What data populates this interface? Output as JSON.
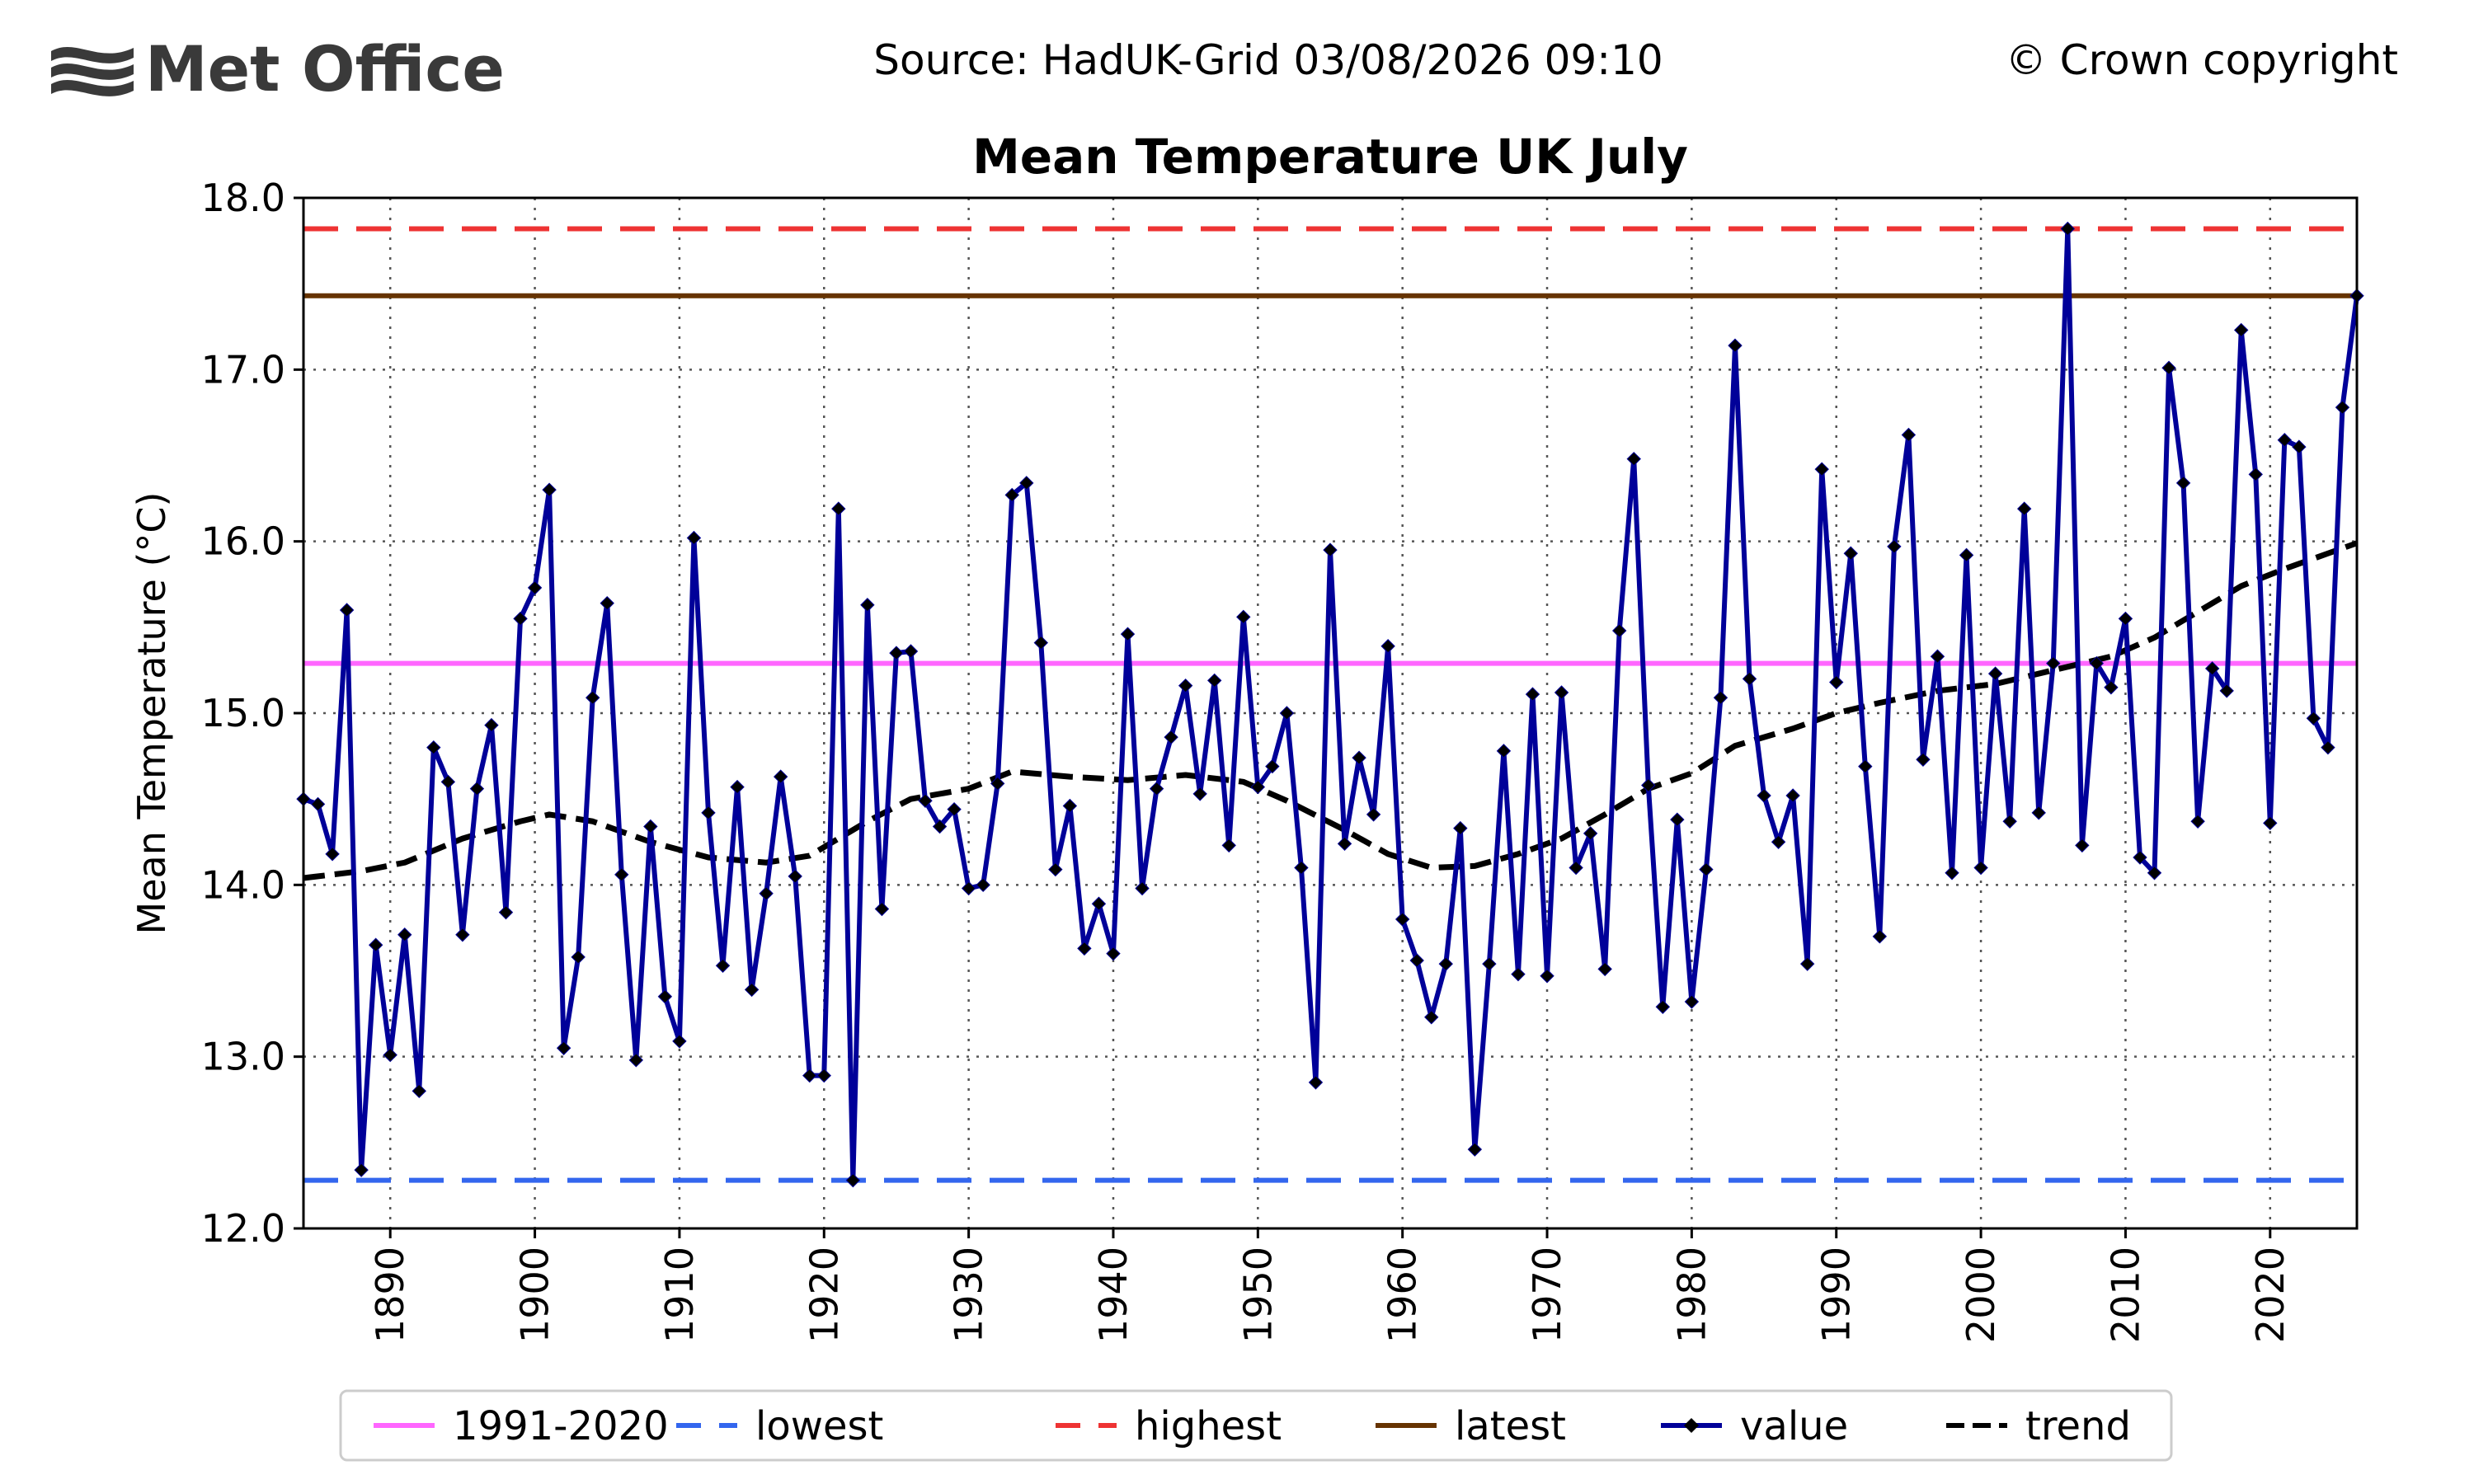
{
  "header": {
    "logo_text": "Met Office",
    "source": "Source: HadUK-Grid 03/08/2026 09:10",
    "copyright": "© Crown copyright"
  },
  "chart_data": {
    "type": "line",
    "title": "Mean Temperature UK July",
    "xlabel": "",
    "ylabel": "Mean Temperature (°C)",
    "xlim": [
      1884,
      2026
    ],
    "ylim": [
      12.0,
      18.0
    ],
    "grid": true,
    "x_ticks": [
      1890,
      1900,
      1910,
      1920,
      1930,
      1940,
      1950,
      1960,
      1970,
      1980,
      1990,
      2000,
      2010,
      2020
    ],
    "y_ticks": [
      "12.0",
      "13.0",
      "14.0",
      "15.0",
      "16.0",
      "17.0",
      "18.0"
    ],
    "legend_position": "bottom",
    "reference_lines": [
      {
        "name": "1991-2020",
        "value": 15.29,
        "color": "#ff66ff",
        "style": "solid"
      },
      {
        "name": "lowest",
        "value": 12.28,
        "color": "#3366ee",
        "style": "dashed"
      },
      {
        "name": "highest",
        "value": 17.82,
        "color": "#ee3333",
        "style": "dashed"
      },
      {
        "name": "latest",
        "value": 17.43,
        "color": "#663300",
        "style": "solid"
      }
    ],
    "series": [
      {
        "name": "value",
        "color": "#000099",
        "x": [
          1884,
          1885,
          1886,
          1887,
          1888,
          1889,
          1890,
          1891,
          1892,
          1893,
          1894,
          1895,
          1896,
          1897,
          1898,
          1899,
          1900,
          1901,
          1902,
          1903,
          1904,
          1905,
          1906,
          1907,
          1908,
          1909,
          1910,
          1911,
          1912,
          1913,
          1914,
          1915,
          1916,
          1917,
          1918,
          1919,
          1920,
          1921,
          1922,
          1923,
          1924,
          1925,
          1926,
          1927,
          1928,
          1929,
          1930,
          1931,
          1932,
          1933,
          1934,
          1935,
          1936,
          1937,
          1938,
          1939,
          1940,
          1941,
          1942,
          1943,
          1944,
          1945,
          1946,
          1947,
          1948,
          1949,
          1950,
          1951,
          1952,
          1953,
          1954,
          1955,
          1956,
          1957,
          1958,
          1959,
          1960,
          1961,
          1962,
          1963,
          1964,
          1965,
          1966,
          1967,
          1968,
          1969,
          1970,
          1971,
          1972,
          1973,
          1974,
          1975,
          1976,
          1977,
          1978,
          1979,
          1980,
          1981,
          1982,
          1983,
          1984,
          1985,
          1986,
          1987,
          1988,
          1989,
          1990,
          1991,
          1992,
          1993,
          1994,
          1995,
          1996,
          1997,
          1998,
          1999,
          2000,
          2001,
          2002,
          2003,
          2004,
          2005,
          2006,
          2007,
          2008,
          2009,
          2010,
          2011,
          2012,
          2013,
          2014,
          2015,
          2016,
          2017,
          2018,
          2019,
          2020,
          2021,
          2022,
          2023,
          2024,
          2025,
          2026
        ],
        "values": [
          14.5,
          14.47,
          14.18,
          15.6,
          12.34,
          13.65,
          13.01,
          13.71,
          12.8,
          14.8,
          14.6,
          13.71,
          14.56,
          14.93,
          13.84,
          15.55,
          15.73,
          16.3,
          13.05,
          13.58,
          15.09,
          15.64,
          14.06,
          12.98,
          14.34,
          13.35,
          13.09,
          16.02,
          14.42,
          13.53,
          14.57,
          13.39,
          13.95,
          14.63,
          14.05,
          12.89,
          12.89,
          16.19,
          12.28,
          15.63,
          13.86,
          15.35,
          15.36,
          14.49,
          14.34,
          14.44,
          13.98,
          14.0,
          14.59,
          16.27,
          16.34,
          15.41,
          14.09,
          14.46,
          13.63,
          13.89,
          13.6,
          15.46,
          13.98,
          14.56,
          14.86,
          15.16,
          14.53,
          15.19,
          14.23,
          15.56,
          14.57,
          14.69,
          15.0,
          14.1,
          12.85,
          15.95,
          14.24,
          14.74,
          14.41,
          15.39,
          13.8,
          13.56,
          13.23,
          13.54,
          14.33,
          12.46,
          13.54,
          14.78,
          13.48,
          15.11,
          13.47,
          15.12,
          14.1,
          14.3,
          13.51,
          15.48,
          16.48,
          14.58,
          13.29,
          14.38,
          13.32,
          14.09,
          15.09,
          17.14,
          15.2,
          14.52,
          14.25,
          14.52,
          13.54,
          16.42,
          15.18,
          15.93,
          14.69,
          13.7,
          15.97,
          16.62,
          14.73,
          15.33,
          14.07,
          15.92,
          14.1,
          15.23,
          14.37,
          16.19,
          14.42,
          15.29,
          17.82,
          14.23,
          15.29,
          15.15,
          15.55,
          14.16,
          14.07,
          17.01,
          16.34,
          14.37,
          15.26,
          15.13,
          17.23,
          16.39,
          14.36,
          16.59,
          16.55,
          14.97,
          14.8,
          16.78,
          17.43
        ]
      },
      {
        "name": "trend",
        "color": "#000000",
        "x": [
          1884,
          1888,
          1891,
          1895,
          1899,
          1901,
          1904,
          1908,
          1912,
          1916,
          1919,
          1923,
          1926,
          1930,
          1933,
          1937,
          1941,
          1945,
          1949,
          1952,
          1956,
          1959,
          1962,
          1965,
          1968,
          1971,
          1974,
          1977,
          1980,
          1983,
          1987,
          1990,
          1993,
          1997,
          2001,
          2005,
          2009,
          2012,
          2015,
          2018,
          2021,
          2024,
          2026
        ],
        "values": [
          14.04,
          14.08,
          14.13,
          14.27,
          14.37,
          14.41,
          14.37,
          14.25,
          14.16,
          14.13,
          14.17,
          14.37,
          14.5,
          14.56,
          14.66,
          14.63,
          14.61,
          14.64,
          14.6,
          14.49,
          14.32,
          14.18,
          14.1,
          14.11,
          14.18,
          14.27,
          14.41,
          14.56,
          14.65,
          14.81,
          14.91,
          15.0,
          15.06,
          15.13,
          15.17,
          15.25,
          15.33,
          15.44,
          15.59,
          15.74,
          15.84,
          15.93,
          15.99
        ]
      }
    ]
  }
}
